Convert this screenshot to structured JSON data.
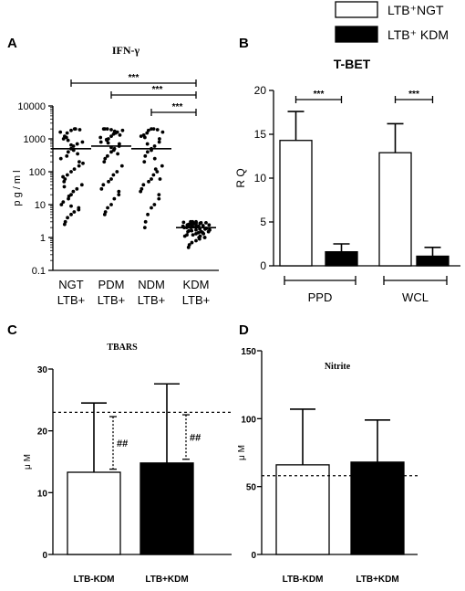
{
  "legend": {
    "items": [
      {
        "label": "LTB⁺NGT",
        "fill": "#ffffff"
      },
      {
        "label": "LTB⁺ KDM",
        "fill": "#000000"
      }
    ],
    "placement": "top-right"
  },
  "chart_data": [
    {
      "panel": "A",
      "type": "scatter",
      "title": "IFN-γ",
      "ylabel": "p g / m l",
      "yscale": "log",
      "ylim": [
        0.1,
        10000
      ],
      "yticks": [
        "0.1",
        "1",
        "10",
        "100",
        "1000",
        "10000"
      ],
      "categories": [
        "NGT LTB+",
        "PDM LTB+",
        "NDM LTB+",
        "KDM LTB+"
      ],
      "category_lines": [
        [
          "NGT",
          "LTB+"
        ],
        [
          "PDM",
          "LTB+"
        ],
        [
          "NDM",
          "LTB+"
        ],
        [
          "KDM",
          "LTB+"
        ]
      ],
      "means": [
        500,
        600,
        500,
        2
      ],
      "points": [
        [
          2.5,
          3,
          4,
          5,
          6,
          7,
          8,
          10,
          12,
          15,
          20,
          25,
          30,
          40,
          50,
          60,
          80,
          100,
          120,
          150,
          200,
          250,
          300,
          400,
          500,
          600,
          700,
          800,
          1000,
          1200,
          1500,
          1800,
          2000,
          2000,
          1900,
          1600,
          1100,
          900,
          650,
          450,
          350,
          180,
          70,
          35,
          18,
          9
        ],
        [
          5,
          6,
          8,
          10,
          15,
          20,
          25,
          30,
          40,
          50,
          60,
          80,
          100,
          150,
          200,
          250,
          300,
          400,
          500,
          600,
          700,
          800,
          900,
          1000,
          1200,
          1400,
          1600,
          1800,
          2000,
          2000,
          2000,
          1900,
          1700,
          1500,
          1300,
          1100,
          950,
          750,
          550,
          450,
          350
        ],
        [
          2,
          3,
          5,
          8,
          10,
          15,
          20,
          30,
          40,
          50,
          60,
          80,
          100,
          150,
          200,
          300,
          400,
          500,
          600,
          800,
          1000,
          1200,
          1500,
          1800,
          2000,
          2000,
          1900,
          1600,
          1300,
          1100,
          700,
          450,
          250,
          120,
          60,
          25
        ],
        [
          0.5,
          0.6,
          0.7,
          0.8,
          0.9,
          1.0,
          1.0,
          1.1,
          1.2,
          1.2,
          1.3,
          1.4,
          1.4,
          1.5,
          1.5,
          1.6,
          1.6,
          1.7,
          1.8,
          1.8,
          1.9,
          2.0,
          2.0,
          2.1,
          2.2,
          2.2,
          2.3,
          2.4,
          2.4,
          2.5,
          2.5,
          2.6,
          2.7,
          2.8,
          2.8,
          2.9,
          3.0,
          3.0,
          3.0,
          1.0,
          1.3,
          1.7,
          2.0,
          2.3,
          2.6,
          2.9,
          1.1,
          1.5,
          1.9,
          2.2,
          2.5,
          2.8
        ]
      ],
      "significance": [
        {
          "from": 0,
          "to": 3,
          "label": "***"
        },
        {
          "from": 1,
          "to": 3,
          "label": "***"
        },
        {
          "from": 2,
          "to": 3,
          "label": "***"
        }
      ]
    },
    {
      "panel": "B",
      "type": "bar",
      "title": "T-BET",
      "ylabel": "R Q",
      "ylim": [
        0,
        20
      ],
      "yticks": [
        "0",
        "5",
        "10",
        "15",
        "20"
      ],
      "groups": [
        "PPD",
        "WCL"
      ],
      "series": [
        {
          "name": "LTB⁺NGT",
          "fill": "#ffffff",
          "values": [
            14.3,
            12.9
          ],
          "errors": [
            3.3,
            3.3
          ]
        },
        {
          "name": "LTB⁺ KDM",
          "fill": "#000000",
          "values": [
            1.6,
            1.1
          ],
          "errors": [
            0.9,
            1.0
          ]
        }
      ],
      "significance": [
        {
          "group": 0,
          "label": "***"
        },
        {
          "group": 1,
          "label": "***"
        }
      ]
    },
    {
      "panel": "C",
      "type": "bar",
      "title": "TBARS",
      "ylabel": "μ M",
      "ylim": [
        0,
        30
      ],
      "yticks": [
        "0",
        "10",
        "20",
        "30"
      ],
      "categories": [
        "LTB-KDM",
        "LTB+KDM"
      ],
      "fills": [
        "#ffffff",
        "#000000"
      ],
      "values": [
        13.3,
        14.8
      ],
      "errors": [
        11.2,
        12.8
      ],
      "reference_line": 23,
      "annotations": [
        {
          "label": "##",
          "high": 22.3,
          "low": 13.8
        },
        {
          "label": "##",
          "high": 22.6,
          "low": 15.4
        }
      ]
    },
    {
      "panel": "D",
      "type": "bar",
      "title": "Nitrite",
      "ylabel": "μ M",
      "ylim": [
        0,
        150
      ],
      "yticks": [
        "0",
        "50",
        "100",
        "150"
      ],
      "categories": [
        "LTB-KDM",
        "LTB+KDM"
      ],
      "fills": [
        "#ffffff",
        "#000000"
      ],
      "values": [
        66,
        68
      ],
      "errors": [
        41,
        31
      ],
      "reference_line": 58
    }
  ]
}
